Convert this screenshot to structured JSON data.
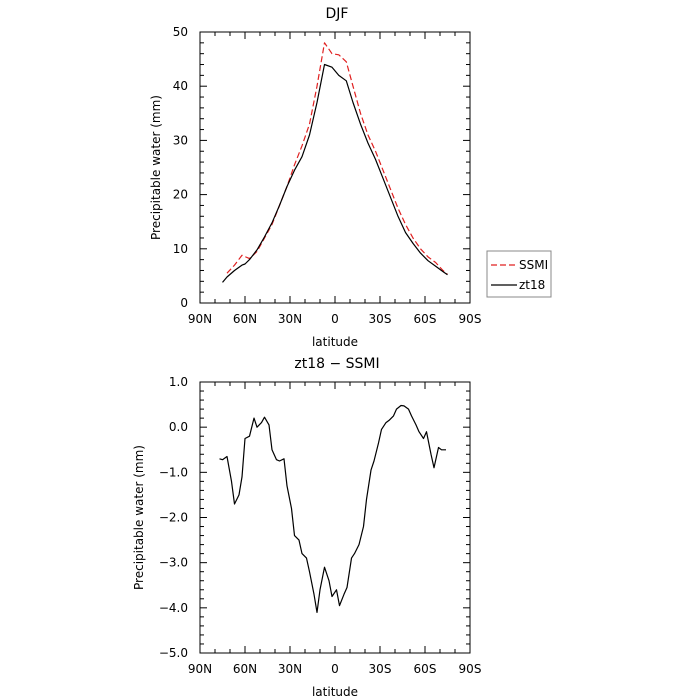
{
  "chart_data": [
    {
      "type": "line",
      "title": "DJF",
      "xlabel": "latitude",
      "ylabel": "Precipitable water (mm)",
      "xlim": [
        90,
        -90
      ],
      "ylim": [
        0,
        50
      ],
      "xticks": [
        90,
        60,
        30,
        0,
        -30,
        -60,
        -90
      ],
      "xtick_labels": [
        "90N",
        "60N",
        "30N",
        "0",
        "30S",
        "60S",
        "90S"
      ],
      "yticks": [
        0,
        10,
        20,
        30,
        40,
        50
      ],
      "ytick_labels": [
        "0",
        "10",
        "20",
        "30",
        "40",
        "50"
      ],
      "legend_position": "right",
      "series": [
        {
          "name": "SSMI",
          "color": "#e02020",
          "dash": "dashed",
          "x": [
            72,
            67,
            62,
            57,
            52,
            47,
            42,
            37,
            32,
            27,
            22,
            17,
            12,
            7,
            2,
            -2.5,
            -7.5,
            -12,
            -17,
            -22,
            -27,
            -32,
            -37,
            -42,
            -47,
            -52,
            -57,
            -62,
            -67,
            -72,
            -75
          ],
          "y": [
            5.5,
            7,
            8.8,
            8.2,
            9.5,
            12,
            14.5,
            18,
            21.5,
            25.5,
            29,
            33,
            40,
            48,
            46,
            45.8,
            44.5,
            40,
            35,
            31,
            28,
            24.5,
            21,
            17.5,
            14.5,
            12,
            10,
            8.5,
            7.5,
            6,
            5.3
          ]
        },
        {
          "name": "zt18",
          "color": "#000000",
          "dash": "solid",
          "x": [
            75,
            72,
            67,
            62,
            60,
            57,
            52,
            47,
            42,
            37,
            32,
            27,
            22,
            17,
            12,
            7,
            2,
            -2.5,
            -7.5,
            -12,
            -17,
            -22,
            -27,
            -32,
            -37,
            -42,
            -47,
            -52,
            -57,
            -62,
            -67,
            -72,
            -75
          ],
          "y": [
            3.8,
            4.8,
            6,
            7,
            7.2,
            8,
            9.8,
            12.2,
            14.8,
            18,
            21.5,
            24.5,
            27,
            31,
            37,
            44,
            43.5,
            42,
            41,
            37,
            33,
            29.5,
            26.5,
            23,
            19.5,
            16,
            13,
            11,
            9.2,
            7.8,
            6.8,
            5.8,
            5.2
          ]
        }
      ]
    },
    {
      "type": "line",
      "title": "zt18 − SSMI",
      "xlabel": "latitude",
      "ylabel": "Precipitable water (mm)",
      "xlim": [
        90,
        -90
      ],
      "ylim": [
        -5,
        1
      ],
      "xticks": [
        90,
        60,
        30,
        0,
        -30,
        -60,
        -90
      ],
      "xtick_labels": [
        "90N",
        "60N",
        "30N",
        "0",
        "30S",
        "60S",
        "90S"
      ],
      "yticks": [
        1,
        0,
        -1,
        -2,
        -3,
        -4,
        -5
      ],
      "ytick_labels": [
        "1.0",
        "0.0",
        "−1.0",
        "−2.0",
        "−3.0",
        "−4.0",
        "−5.0"
      ],
      "series": [
        {
          "color": "#000000",
          "dash": "solid",
          "x": [
            77,
            75,
            72,
            69,
            67,
            64,
            62,
            60,
            57,
            54,
            52,
            49,
            47,
            44,
            42,
            39,
            37,
            34,
            32,
            29,
            27,
            24,
            22,
            19,
            17,
            14,
            12,
            10,
            7,
            4,
            2,
            -1,
            -3,
            -6,
            -8,
            -11,
            -13,
            -16,
            -19,
            -21,
            -24,
            -26,
            -29,
            -31,
            -34,
            -36,
            -39,
            -41,
            -44,
            -46,
            -49,
            -51,
            -54,
            -56,
            -59,
            -61,
            -64,
            -66,
            -69,
            -71,
            -74
          ],
          "y": [
            -0.7,
            -0.72,
            -0.65,
            -1.2,
            -1.7,
            -1.5,
            -1.1,
            -0.25,
            -0.2,
            0.2,
            0.0,
            0.1,
            0.22,
            0.05,
            -0.5,
            -0.72,
            -0.75,
            -0.7,
            -1.3,
            -1.8,
            -2.4,
            -2.5,
            -2.8,
            -2.9,
            -3.2,
            -3.7,
            -4.1,
            -3.6,
            -3.1,
            -3.4,
            -3.75,
            -3.6,
            -3.95,
            -3.7,
            -3.55,
            -2.9,
            -2.8,
            -2.6,
            -2.2,
            -1.6,
            -0.95,
            -0.75,
            -0.35,
            -0.05,
            0.1,
            0.15,
            0.25,
            0.4,
            0.48,
            0.47,
            0.4,
            0.25,
            0.05,
            -0.1,
            -0.25,
            -0.1,
            -0.6,
            -0.9,
            -0.45,
            -0.5,
            -0.5
          ]
        }
      ]
    }
  ]
}
